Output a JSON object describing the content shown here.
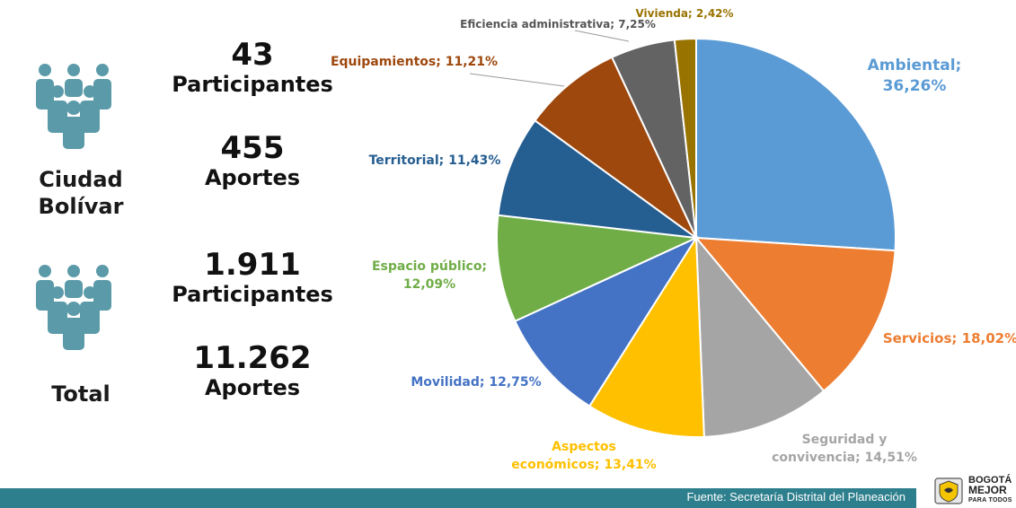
{
  "colors": {
    "icon": "#5b9aa9",
    "footer": "#2e7f8d"
  },
  "summary": {
    "local": {
      "icon": "people-group-icon",
      "region_line1": "Ciudad",
      "region_line2": "Bolívar",
      "participants_value": "43",
      "participants_label": "Participantes",
      "contributions_value": "455",
      "contributions_label": "Aportes"
    },
    "total": {
      "icon": "people-group-icon",
      "region_line1": "Total",
      "participants_value": "1.911",
      "participants_label": "Participantes",
      "contributions_value": "11.262",
      "contributions_label": "Aportes"
    }
  },
  "chart_data": {
    "type": "pie",
    "title": "",
    "start_angle_deg": 0,
    "direction": "clockwise",
    "slices": [
      {
        "label": "Ambiental",
        "value": 36.26,
        "display": "36,26%",
        "color": "#5b9bd5",
        "label_color": "#5b9bd5"
      },
      {
        "label": "Servicios",
        "value": 18.02,
        "display": "18,02%",
        "color": "#ed7d31",
        "label_color": "#ed7d31"
      },
      {
        "label": "Seguridad y convivencia",
        "value": 14.51,
        "display": "14,51%",
        "color": "#a5a5a5",
        "label_color": "#a5a5a5"
      },
      {
        "label": "Aspectos económicos",
        "value": 13.41,
        "display": "13,41%",
        "color": "#ffc000",
        "label_color": "#ffc000"
      },
      {
        "label": "Movilidad",
        "value": 12.75,
        "display": "12,75%",
        "color": "#4472c4",
        "label_color": "#4472c4"
      },
      {
        "label": "Espacio público",
        "value": 12.09,
        "display": "12,09%",
        "color": "#70ad47",
        "label_color": "#70ad47"
      },
      {
        "label": "Territorial",
        "value": 11.43,
        "display": "11,43%",
        "color": "#255e91",
        "label_color": "#255e91"
      },
      {
        "label": "Equipamientos",
        "value": 11.21,
        "display": "11,21%",
        "color": "#9e480e",
        "label_color": "#9e480e"
      },
      {
        "label": "Eficiencia administrativa",
        "value": 7.25,
        "display": "7,25%",
        "color": "#636363",
        "label_color": "#555555"
      },
      {
        "label": "Vivienda",
        "value": 2.42,
        "display": "2,42%",
        "color": "#997300",
        "label_color": "#997300"
      }
    ]
  },
  "footer": {
    "source": "Fuente: Secretaría Distrital del Planeación"
  },
  "logo": {
    "icon": "bogota-shield-icon",
    "line1": "BOGOTÁ",
    "line2": "MEJOR",
    "line3": "PARA TODOS"
  }
}
